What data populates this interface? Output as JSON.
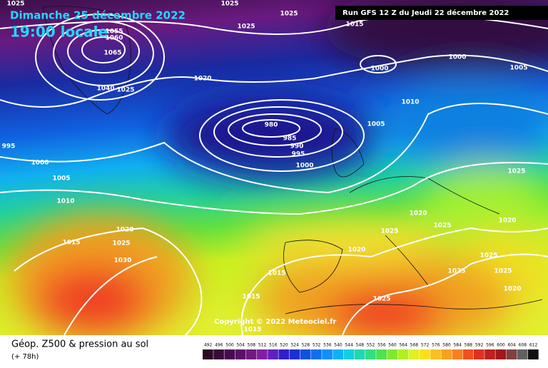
{
  "header": {
    "date": "Dimanche 25 décembre 2022",
    "time": "19:00 locale",
    "run": "Run GFS 12 Z du Jeudi 22 décembre 2022"
  },
  "copyright": "Copyright © 2022 Meteociel.fr",
  "footer": {
    "title": "Géop. Z500 & pression au sol",
    "lead": "(+ 78h)"
  },
  "colorbar": {
    "labels": [
      492,
      496,
      500,
      504,
      508,
      512,
      516,
      520,
      524,
      528,
      532,
      536,
      540,
      544,
      548,
      552,
      556,
      560,
      564,
      568,
      572,
      576,
      580,
      584,
      588,
      592,
      596,
      600,
      604,
      608,
      612
    ]
  },
  "isobar_labels": [
    1025,
    1025,
    1025,
    1025,
    1015,
    1055,
    1060,
    1065,
    1040,
    1025,
    1020,
    1000,
    1000,
    1005,
    1010,
    1005,
    980,
    985,
    990,
    995,
    1000,
    995,
    1000,
    1005,
    1010,
    1025,
    1020,
    1025,
    1025,
    1020,
    1020,
    1015,
    1025,
    1030,
    1020,
    1025,
    1025,
    1025,
    1015,
    1015,
    1025,
    1020,
    1015
  ]
}
